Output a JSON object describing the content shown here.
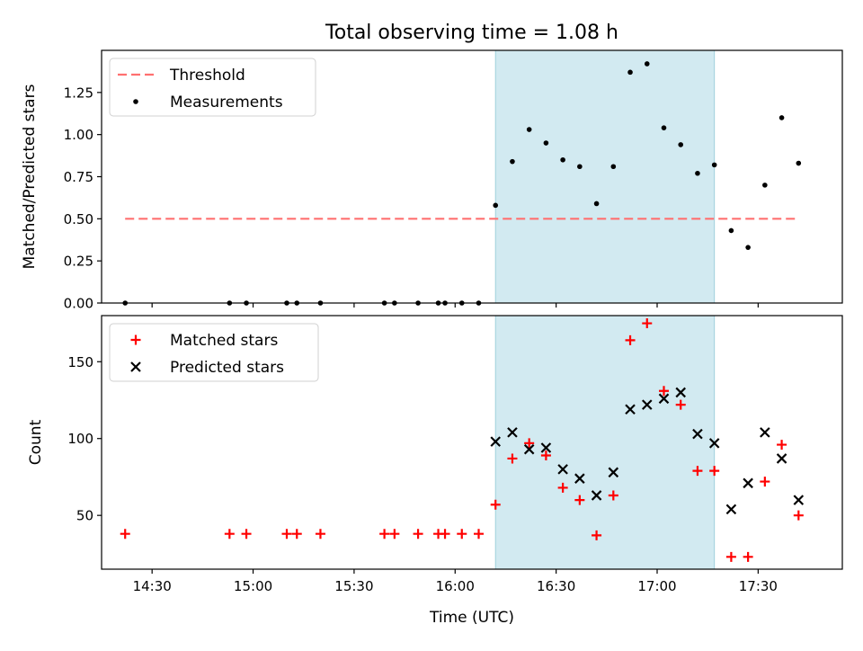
{
  "title": "Total observing time = 1.08 h",
  "xlabel": "Time (UTC)",
  "x_ticks": [
    "14:30",
    "15:00",
    "15:30",
    "16:00",
    "16:30",
    "17:00",
    "17:30"
  ],
  "colors": {
    "threshold": "#ff7070",
    "matched": "#ff0000",
    "predicted": "#000000",
    "span": "#add8e6"
  },
  "chart_data": [
    {
      "type": "scatter",
      "ylabel": "Matched/Predicted stars",
      "xlim": [
        "14:15",
        "17:55"
      ],
      "ylim": [
        0,
        1.5
      ],
      "y_ticks": [
        "0.00",
        "0.25",
        "0.50",
        "0.75",
        "1.00",
        "1.25"
      ],
      "legend_position": "top-left",
      "highlight_span": [
        "16:12",
        "17:17"
      ],
      "threshold": {
        "name": "Threshold",
        "value": 0.5,
        "x_range": [
          "14:22",
          "17:42"
        ]
      },
      "series": [
        {
          "name": "Measurements",
          "points": [
            [
              "14:22",
              0.0
            ],
            [
              "14:53",
              0.0
            ],
            [
              "14:58",
              0.0
            ],
            [
              "15:10",
              0.0
            ],
            [
              "15:13",
              0.0
            ],
            [
              "15:20",
              0.0
            ],
            [
              "15:39",
              0.0
            ],
            [
              "15:42",
              0.0
            ],
            [
              "15:49",
              0.0
            ],
            [
              "15:55",
              0.0
            ],
            [
              "15:57",
              0.0
            ],
            [
              "16:02",
              0.0
            ],
            [
              "16:07",
              0.0
            ],
            [
              "16:12",
              0.58
            ],
            [
              "16:17",
              0.84
            ],
            [
              "16:22",
              1.03
            ],
            [
              "16:27",
              0.95
            ],
            [
              "16:32",
              0.85
            ],
            [
              "16:37",
              0.81
            ],
            [
              "16:42",
              0.59
            ],
            [
              "16:47",
              0.81
            ],
            [
              "16:52",
              1.37
            ],
            [
              "16:57",
              1.42
            ],
            [
              "17:02",
              1.04
            ],
            [
              "17:07",
              0.94
            ],
            [
              "17:12",
              0.77
            ],
            [
              "17:17",
              0.82
            ],
            [
              "17:22",
              0.43
            ],
            [
              "17:27",
              0.33
            ],
            [
              "17:32",
              0.7
            ],
            [
              "17:37",
              1.1
            ],
            [
              "17:42",
              0.83
            ]
          ]
        }
      ]
    },
    {
      "type": "scatter",
      "ylabel": "Count",
      "xlim": [
        "14:15",
        "17:55"
      ],
      "ylim": [
        15,
        180
      ],
      "y_ticks": [
        "50",
        "100",
        "150"
      ],
      "legend_position": "top-left",
      "highlight_span": [
        "16:12",
        "17:17"
      ],
      "series": [
        {
          "name": "Matched stars",
          "points": [
            [
              "14:22",
              38
            ],
            [
              "14:53",
              38
            ],
            [
              "14:58",
              38
            ],
            [
              "15:10",
              38
            ],
            [
              "15:13",
              38
            ],
            [
              "15:20",
              38
            ],
            [
              "15:39",
              38
            ],
            [
              "15:42",
              38
            ],
            [
              "15:49",
              38
            ],
            [
              "15:55",
              38
            ],
            [
              "15:57",
              38
            ],
            [
              "16:02",
              38
            ],
            [
              "16:07",
              38
            ],
            [
              "16:12",
              57
            ],
            [
              "16:17",
              87
            ],
            [
              "16:22",
              97
            ],
            [
              "16:27",
              89
            ],
            [
              "16:32",
              68
            ],
            [
              "16:37",
              60
            ],
            [
              "16:42",
              37
            ],
            [
              "16:47",
              63
            ],
            [
              "16:52",
              164
            ],
            [
              "16:57",
              175
            ],
            [
              "17:02",
              131
            ],
            [
              "17:07",
              122
            ],
            [
              "17:12",
              79
            ],
            [
              "17:17",
              79
            ],
            [
              "17:22",
              23
            ],
            [
              "17:27",
              23
            ],
            [
              "17:32",
              72
            ],
            [
              "17:37",
              96
            ],
            [
              "17:42",
              50
            ]
          ]
        },
        {
          "name": "Predicted stars",
          "points": [
            [
              "16:12",
              98
            ],
            [
              "16:17",
              104
            ],
            [
              "16:22",
              93
            ],
            [
              "16:27",
              94
            ],
            [
              "16:32",
              80
            ],
            [
              "16:37",
              74
            ],
            [
              "16:42",
              63
            ],
            [
              "16:47",
              78
            ],
            [
              "16:52",
              119
            ],
            [
              "16:57",
              122
            ],
            [
              "17:02",
              126
            ],
            [
              "17:07",
              130
            ],
            [
              "17:12",
              103
            ],
            [
              "17:17",
              97
            ],
            [
              "17:22",
              54
            ],
            [
              "17:27",
              71
            ],
            [
              "17:32",
              104
            ],
            [
              "17:37",
              87
            ],
            [
              "17:42",
              60
            ]
          ]
        }
      ]
    }
  ]
}
